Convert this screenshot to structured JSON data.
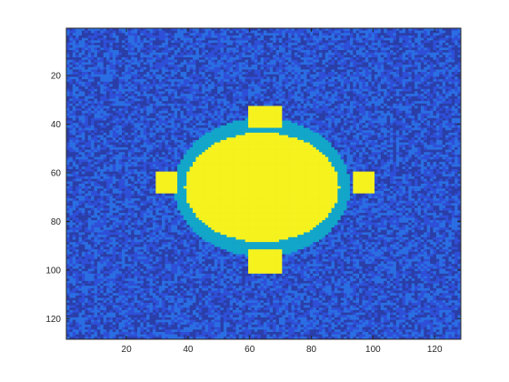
{
  "chart_data": {
    "type": "heatmap",
    "title": "",
    "xlabel": "",
    "ylabel": "",
    "grid_size": [
      128,
      128
    ],
    "xlim": [
      0.5,
      128.5
    ],
    "ylim": [
      0.5,
      128.5
    ],
    "y_axis_direction": "reversed",
    "x_ticks": [
      20,
      40,
      60,
      80,
      100,
      120
    ],
    "y_ticks": [
      20,
      40,
      60,
      80,
      100,
      120
    ],
    "x_tick_labels": [
      "20",
      "40",
      "60",
      "80",
      "100",
      "120"
    ],
    "y_tick_labels": [
      "20",
      "40",
      "60",
      "80",
      "100",
      "120"
    ],
    "colormap": "parula",
    "colors": {
      "background_dark": "#2b3ea8",
      "background_mid": "#2f4fd8",
      "background_light": "#2a6ee3",
      "ring": "#12a6c9",
      "fill": "#f6f21e"
    },
    "regions": [
      {
        "name": "noise-background",
        "shape": "full-grid",
        "color_class": "noise"
      },
      {
        "name": "ring",
        "shape": "ellipse",
        "center": [
          64,
          66
        ],
        "radius": [
          28.5,
          28.5
        ],
        "color_class": "ring"
      },
      {
        "name": "core",
        "shape": "ellipse",
        "center": [
          64,
          66
        ],
        "radius": [
          25,
          22.5
        ],
        "color_class": "fill"
      },
      {
        "name": "top-tab",
        "shape": "rect",
        "x_range": [
          60,
          70
        ],
        "y_range": [
          33,
          41
        ],
        "color_class": "fill"
      },
      {
        "name": "bottom-tab",
        "shape": "rect",
        "x_range": [
          60,
          70
        ],
        "y_range": [
          92,
          101
        ],
        "color_class": "fill"
      },
      {
        "name": "left-tab",
        "shape": "rect",
        "x_range": [
          30,
          36
        ],
        "y_range": [
          60,
          68
        ],
        "color_class": "fill"
      },
      {
        "name": "right-tab",
        "shape": "rect",
        "x_range": [
          94,
          100
        ],
        "y_range": [
          60,
          68
        ],
        "color_class": "fill"
      }
    ]
  }
}
